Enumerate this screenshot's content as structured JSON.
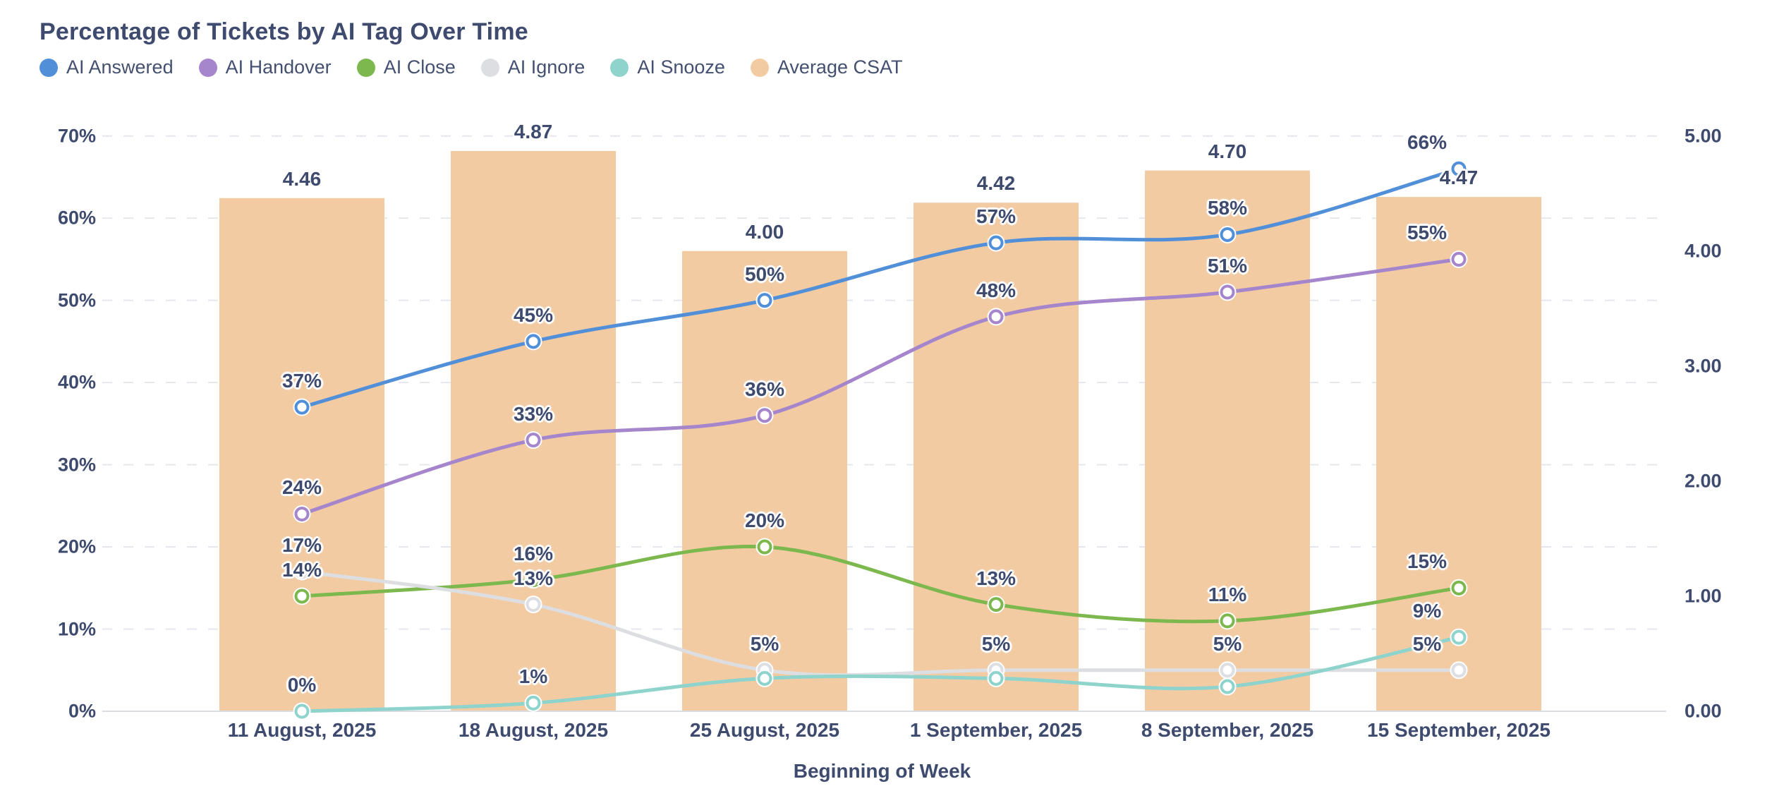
{
  "title": "Percentage of Tickets by AI Tag Over Time",
  "theme": {
    "text_color": "#3e4b6e",
    "grid_color": "#e5e7ed",
    "axis_line_color": "#d9dce2",
    "background": "#ffffff"
  },
  "legend": [
    {
      "label": "AI Answered",
      "color": "#518fd9"
    },
    {
      "label": "AI Handover",
      "color": "#a585cb"
    },
    {
      "label": "AI Close",
      "color": "#7cb84e"
    },
    {
      "label": "AI Ignore",
      "color": "#dcdee1"
    },
    {
      "label": "AI Snooze",
      "color": "#8fd4cc"
    },
    {
      "label": "Average CSAT",
      "color": "#f2cba3"
    }
  ],
  "chart_data": {
    "type": "mixed-bar-line",
    "title": "Percentage of Tickets by AI Tag Over Time",
    "categories": [
      "11 August, 2025",
      "18 August, 2025",
      "25 August, 2025",
      "1 September, 2025",
      "8 September, 2025",
      "15 September, 2025"
    ],
    "xlabel": "Beginning of Week",
    "left_axis": {
      "min": 0,
      "max": 70,
      "ticks": [
        "0%",
        "10%",
        "20%",
        "30%",
        "40%",
        "50%",
        "60%",
        "70%"
      ],
      "grid": true
    },
    "right_axis": {
      "min": 0,
      "max": 5,
      "ticks": [
        "0.00",
        "1.00",
        "2.00",
        "3.00",
        "4.00",
        "5.00"
      ],
      "grid": false
    },
    "legend_position": "top-left",
    "bar_series": {
      "name": "Average CSAT",
      "axis": "right",
      "color": "#f2cba3",
      "values": [
        4.46,
        4.87,
        4.0,
        4.42,
        4.7,
        4.47
      ],
      "labels": [
        "4.46",
        "4.87",
        "4.00",
        "4.42",
        "4.70",
        "4.47"
      ]
    },
    "line_series": [
      {
        "name": "AI Answered",
        "axis": "left",
        "color": "#518fd9",
        "values": [
          37,
          45,
          50,
          57,
          58,
          66
        ],
        "labels": [
          "37%",
          "45%",
          "50%",
          "57%",
          "58%",
          "66%"
        ]
      },
      {
        "name": "AI Handover",
        "axis": "left",
        "color": "#a585cb",
        "values": [
          24,
          33,
          36,
          48,
          51,
          55
        ],
        "labels": [
          "24%",
          "33%",
          "36%",
          "48%",
          "51%",
          "55%"
        ]
      },
      {
        "name": "AI Close",
        "axis": "left",
        "color": "#7cb84e",
        "values": [
          14,
          16,
          20,
          13,
          11,
          15
        ],
        "labels": [
          "14%",
          "16%",
          "20%",
          "13%",
          "11%",
          "15%"
        ]
      },
      {
        "name": "AI Ignore",
        "axis": "left",
        "color": "#dcdee1",
        "values": [
          17,
          13,
          5,
          5,
          5,
          5
        ],
        "labels": [
          "17%",
          "13%",
          "5%",
          "5%",
          "5%",
          "5%"
        ]
      },
      {
        "name": "AI Snooze",
        "axis": "left",
        "color": "#8fd4cc",
        "values": [
          0,
          1,
          4,
          4,
          3,
          9
        ],
        "labels": [
          "0%",
          "1%",
          "",
          "",
          "",
          "9%"
        ]
      }
    ]
  }
}
